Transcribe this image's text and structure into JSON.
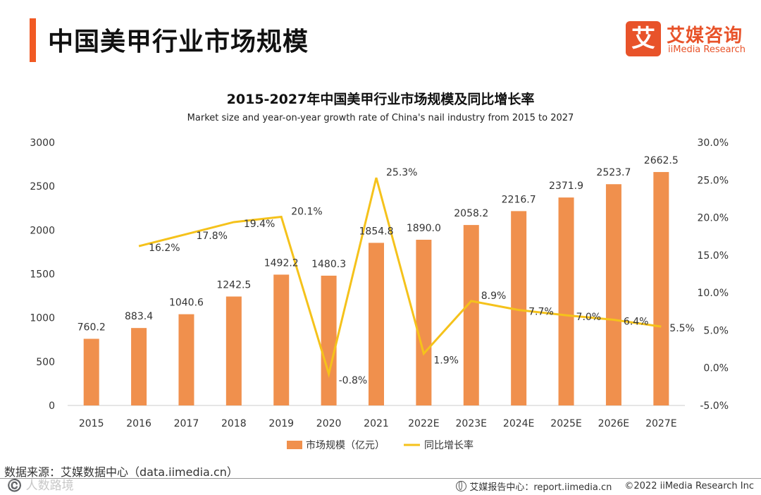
{
  "header": {
    "title": "中国美甲行业市场规模"
  },
  "logo": {
    "box_char": "艾",
    "name_cn": "艾媒咨询",
    "name_en": "iiMedia Research",
    "color": "#e8532a"
  },
  "source": "数据来源：艾媒数据中心（data.iimedia.cn）",
  "watermark": "©️ 人数路境",
  "footer": {
    "center_label": "艾媒报告中心：report.iimedia.cn",
    "copyright": "©2022  iiMedia Research  Inc"
  },
  "chart_data": {
    "type": "bar",
    "title": "2015-2027年中国美甲行业市场规模及同比增长率",
    "subtitle": "Market size and year-on-year growth rate of China's nail industry from 2015 to 2027",
    "categories": [
      "2015",
      "2016",
      "2017",
      "2018",
      "2019",
      "2020",
      "2021",
      "2022E",
      "2023E",
      "2024E",
      "2025E",
      "2026E",
      "2027E"
    ],
    "series": [
      {
        "name": "市场规模（亿元）",
        "type": "bar",
        "axis": "left",
        "color": "#f0904d",
        "values": [
          760.2,
          883.4,
          1040.6,
          1242.5,
          1492.2,
          1480.3,
          1854.8,
          1890.0,
          2058.2,
          2216.7,
          2371.9,
          2523.7,
          2662.5
        ],
        "labels": [
          "760.2",
          "883.4",
          "1040.6",
          "1242.5",
          "1492.2",
          "1480.3",
          "1854.8",
          "1890.0",
          "2058.2",
          "2216.7",
          "2371.9",
          "2523.7",
          "2662.5"
        ]
      },
      {
        "name": "同比增长率",
        "type": "line",
        "axis": "right",
        "color": "#f5c21b",
        "values": [
          null,
          16.2,
          17.8,
          19.4,
          20.1,
          -0.8,
          25.3,
          1.9,
          8.9,
          7.7,
          7.0,
          6.4,
          5.5
        ],
        "labels": [
          "",
          "16.2%",
          "17.8%",
          "19.4%",
          "20.1%",
          "-0.8%",
          "25.3%",
          "1.9%",
          "8.9%",
          "7.7%",
          "7.0%",
          "6.4%",
          "5.5%"
        ]
      }
    ],
    "y_left": {
      "min": 0,
      "max": 3000,
      "ticks": [
        "0",
        "500",
        "1000",
        "1500",
        "2000",
        "2500",
        "3000"
      ]
    },
    "y_right": {
      "min": -5,
      "max": 30,
      "ticks": [
        "-5.0%",
        "0.0%",
        "5.0%",
        "10.0%",
        "15.0%",
        "20.0%",
        "25.0%",
        "30.0%"
      ]
    },
    "grid": false,
    "legend_position": "bottom-center"
  }
}
